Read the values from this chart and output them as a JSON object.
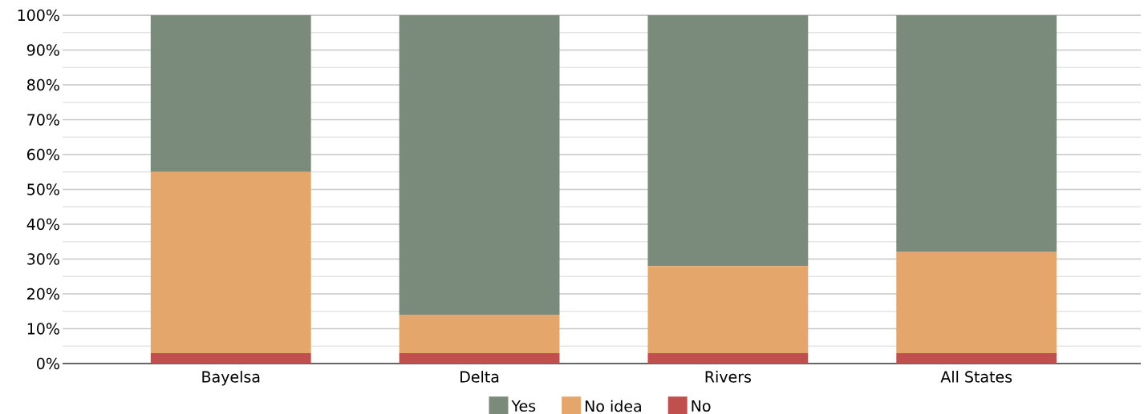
{
  "chart_data": {
    "type": "bar",
    "stacked": true,
    "categories": [
      "Bayelsa",
      "Delta",
      "Rivers",
      "All States"
    ],
    "series": [
      {
        "name": "No",
        "color": "#c0504d",
        "values": [
          3,
          3,
          3,
          3
        ]
      },
      {
        "name": "No idea",
        "color": "#e4a66b",
        "values": [
          52,
          11,
          25,
          29
        ]
      },
      {
        "name": "Yes",
        "color": "#7a8b7b",
        "values": [
          45,
          86,
          72,
          68
        ]
      }
    ],
    "ylim": [
      0,
      100
    ],
    "yticks": [
      {
        "value": 0,
        "label": "0%"
      },
      {
        "value": 10,
        "label": "10%"
      },
      {
        "value": 20,
        "label": "20%"
      },
      {
        "value": 30,
        "label": "30%"
      },
      {
        "value": 40,
        "label": "40%"
      },
      {
        "value": 50,
        "label": "50%"
      },
      {
        "value": 60,
        "label": "60%"
      },
      {
        "value": 70,
        "label": "70%"
      },
      {
        "value": 80,
        "label": "80%"
      },
      {
        "value": 90,
        "label": "90%"
      },
      {
        "value": 100,
        "label": "100%"
      }
    ],
    "grid": "y",
    "legend": "bottom"
  }
}
